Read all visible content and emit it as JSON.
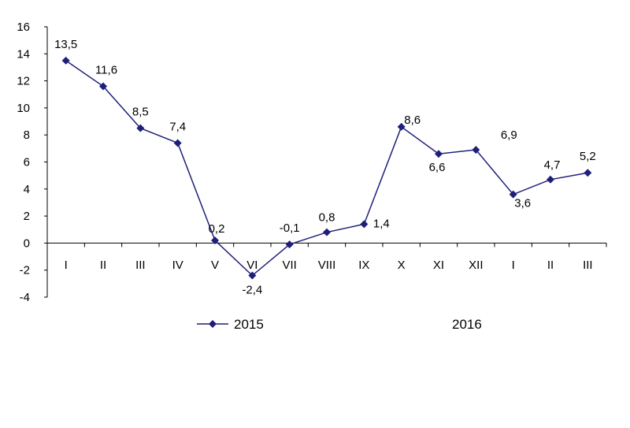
{
  "chart_data": {
    "type": "line",
    "categories": [
      "I",
      "II",
      "III",
      "IV",
      "V",
      "VI",
      "VII",
      "VIII",
      "IX",
      "X",
      "XI",
      "XII",
      "I",
      "II",
      "III"
    ],
    "series": [
      {
        "name": "2015",
        "values": [
          13.5,
          11.6,
          8.5,
          7.4,
          0.2,
          -2.4,
          -0.1,
          0.8,
          1.4,
          8.6,
          6.6,
          6.9,
          3.6,
          4.7,
          5.2
        ],
        "labels": [
          "13,5",
          "11,6",
          "8,5",
          "7,4",
          "0,2",
          "-2,4",
          "-0,1",
          "0,8",
          "1,4",
          "8,6",
          "6,6",
          "6,9",
          "3,6",
          "4,7",
          "5,2"
        ],
        "color": "#1f1f7a"
      }
    ],
    "year_labels": [
      "2015",
      "2016"
    ],
    "y_ticks": [
      "-4",
      "-2",
      "0",
      "2",
      "4",
      "6",
      "8",
      "10",
      "12",
      "14",
      "16"
    ],
    "ylim": [
      -4,
      16
    ],
    "grid": false,
    "legend_position": "bottom-left",
    "axis_color": "#000000"
  }
}
